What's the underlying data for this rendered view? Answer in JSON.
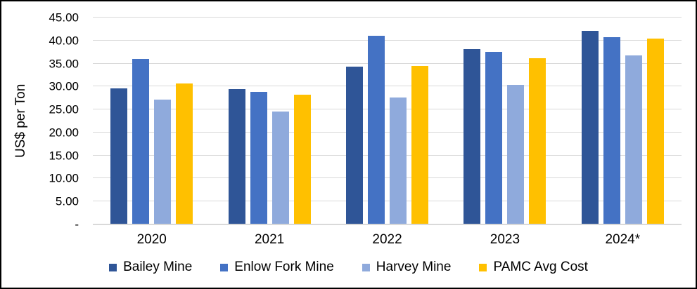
{
  "chart_data": {
    "type": "bar",
    "title": "",
    "ylabel": "US$ per Ton",
    "xlabel": "",
    "categories": [
      "2020",
      "2021",
      "2022",
      "2023",
      "2024*"
    ],
    "series": [
      {
        "name": "Bailey Mine",
        "color": "#2F5597",
        "values": [
          29.6,
          29.4,
          34.4,
          38.1,
          42.1
        ]
      },
      {
        "name": "Enlow Fork Mine",
        "color": "#4472C4",
        "values": [
          36.0,
          28.8,
          41.0,
          37.6,
          40.7
        ]
      },
      {
        "name": "Harvey Mine",
        "color": "#8FAADC",
        "values": [
          27.1,
          24.6,
          27.6,
          30.4,
          36.7
        ]
      },
      {
        "name": "PAMC Avg Cost",
        "color": "#FFC000",
        "values": [
          30.7,
          28.2,
          34.5,
          36.1,
          40.4
        ]
      }
    ],
    "ylim": [
      0,
      45
    ],
    "ytick_step": 5,
    "ytick_labels": [
      "-",
      "5.00",
      "10.00",
      "15.00",
      "20.00",
      "25.00",
      "30.00",
      "35.00",
      "40.00",
      "45.00"
    ],
    "grid": true,
    "legend_position": "bottom"
  },
  "colors": {
    "gridline": "#D9D9D9",
    "text": "#000000",
    "background": "#FFFFFF",
    "border": "#000000"
  }
}
